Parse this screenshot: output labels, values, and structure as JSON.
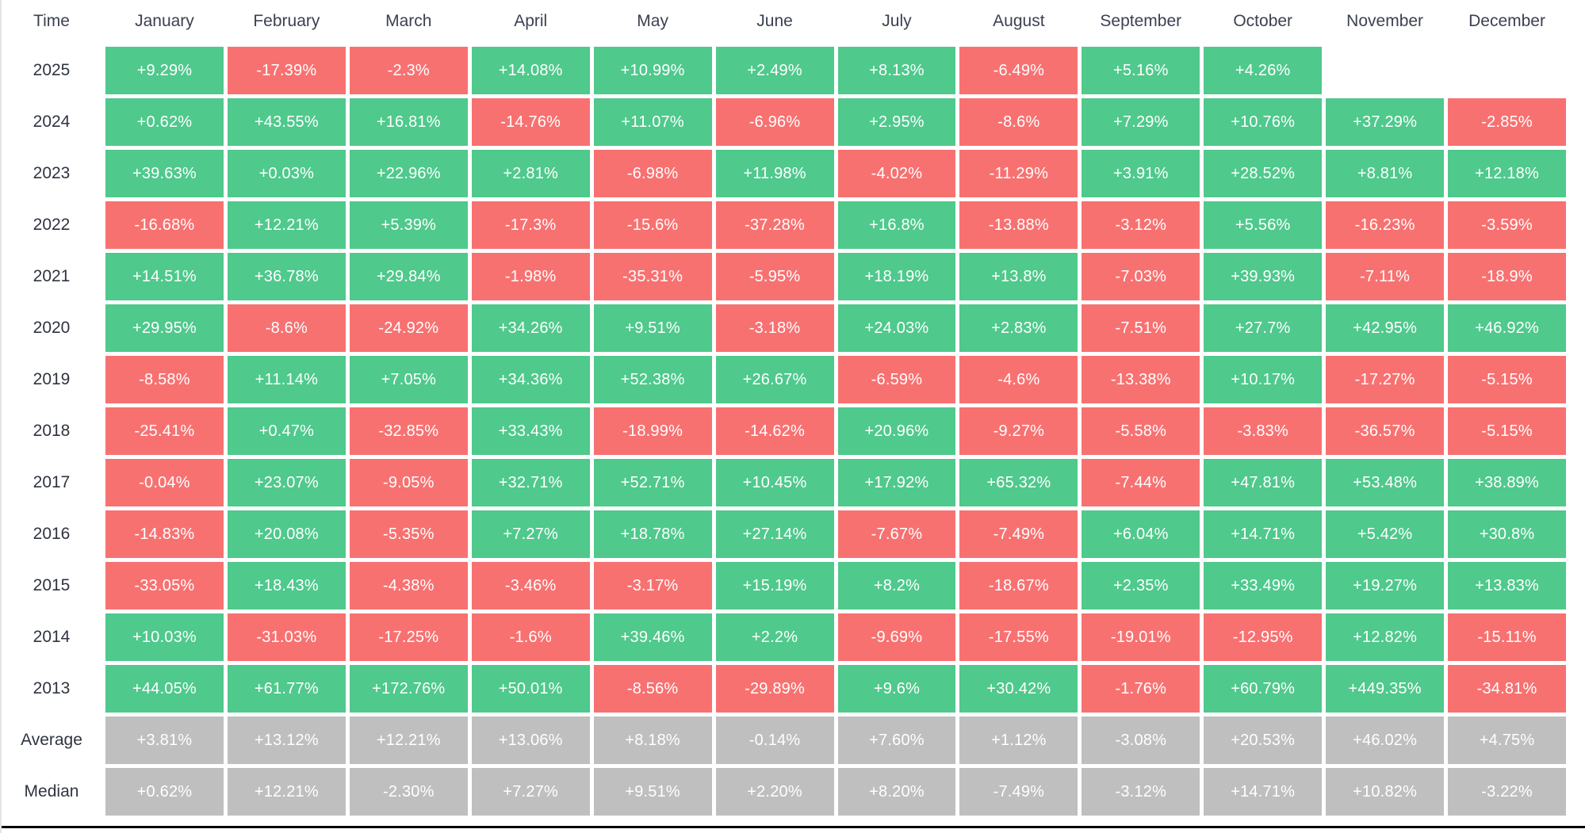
{
  "colors": {
    "green": "#4fc98c",
    "red": "#f87171",
    "gray": "#bfbfbf",
    "header_text": "#3b4150",
    "label_text": "#2e3440",
    "cell_text": "#ffffff",
    "bottom_rule": "#050505"
  },
  "table": {
    "corner_label": "Time",
    "months": [
      "January",
      "February",
      "March",
      "April",
      "May",
      "June",
      "July",
      "August",
      "September",
      "October",
      "November",
      "December"
    ],
    "rows": [
      {
        "label": "2025",
        "type": "year",
        "cells": [
          {
            "v": "+9.29%",
            "c": "green"
          },
          {
            "v": "-17.39%",
            "c": "red"
          },
          {
            "v": "-2.3%",
            "c": "red"
          },
          {
            "v": "+14.08%",
            "c": "green"
          },
          {
            "v": "+10.99%",
            "c": "green"
          },
          {
            "v": "+2.49%",
            "c": "green"
          },
          {
            "v": "+8.13%",
            "c": "green"
          },
          {
            "v": "-6.49%",
            "c": "red"
          },
          {
            "v": "+5.16%",
            "c": "green"
          },
          {
            "v": "+4.26%",
            "c": "green"
          },
          null,
          null
        ]
      },
      {
        "label": "2024",
        "type": "year",
        "cells": [
          {
            "v": "+0.62%",
            "c": "green"
          },
          {
            "v": "+43.55%",
            "c": "green"
          },
          {
            "v": "+16.81%",
            "c": "green"
          },
          {
            "v": "-14.76%",
            "c": "red"
          },
          {
            "v": "+11.07%",
            "c": "green"
          },
          {
            "v": "-6.96%",
            "c": "red"
          },
          {
            "v": "+2.95%",
            "c": "green"
          },
          {
            "v": "-8.6%",
            "c": "red"
          },
          {
            "v": "+7.29%",
            "c": "green"
          },
          {
            "v": "+10.76%",
            "c": "green"
          },
          {
            "v": "+37.29%",
            "c": "green"
          },
          {
            "v": "-2.85%",
            "c": "red"
          }
        ]
      },
      {
        "label": "2023",
        "type": "year",
        "cells": [
          {
            "v": "+39.63%",
            "c": "green"
          },
          {
            "v": "+0.03%",
            "c": "green"
          },
          {
            "v": "+22.96%",
            "c": "green"
          },
          {
            "v": "+2.81%",
            "c": "green"
          },
          {
            "v": "-6.98%",
            "c": "red"
          },
          {
            "v": "+11.98%",
            "c": "green"
          },
          {
            "v": "-4.02%",
            "c": "red"
          },
          {
            "v": "-11.29%",
            "c": "red"
          },
          {
            "v": "+3.91%",
            "c": "green"
          },
          {
            "v": "+28.52%",
            "c": "green"
          },
          {
            "v": "+8.81%",
            "c": "green"
          },
          {
            "v": "+12.18%",
            "c": "green"
          }
        ]
      },
      {
        "label": "2022",
        "type": "year",
        "cells": [
          {
            "v": "-16.68%",
            "c": "red"
          },
          {
            "v": "+12.21%",
            "c": "green"
          },
          {
            "v": "+5.39%",
            "c": "green"
          },
          {
            "v": "-17.3%",
            "c": "red"
          },
          {
            "v": "-15.6%",
            "c": "red"
          },
          {
            "v": "-37.28%",
            "c": "red"
          },
          {
            "v": "+16.8%",
            "c": "green"
          },
          {
            "v": "-13.88%",
            "c": "red"
          },
          {
            "v": "-3.12%",
            "c": "red"
          },
          {
            "v": "+5.56%",
            "c": "green"
          },
          {
            "v": "-16.23%",
            "c": "red"
          },
          {
            "v": "-3.59%",
            "c": "red"
          }
        ]
      },
      {
        "label": "2021",
        "type": "year",
        "cells": [
          {
            "v": "+14.51%",
            "c": "green"
          },
          {
            "v": "+36.78%",
            "c": "green"
          },
          {
            "v": "+29.84%",
            "c": "green"
          },
          {
            "v": "-1.98%",
            "c": "red"
          },
          {
            "v": "-35.31%",
            "c": "red"
          },
          {
            "v": "-5.95%",
            "c": "red"
          },
          {
            "v": "+18.19%",
            "c": "green"
          },
          {
            "v": "+13.8%",
            "c": "green"
          },
          {
            "v": "-7.03%",
            "c": "red"
          },
          {
            "v": "+39.93%",
            "c": "green"
          },
          {
            "v": "-7.11%",
            "c": "red"
          },
          {
            "v": "-18.9%",
            "c": "red"
          }
        ]
      },
      {
        "label": "2020",
        "type": "year",
        "cells": [
          {
            "v": "+29.95%",
            "c": "green"
          },
          {
            "v": "-8.6%",
            "c": "red"
          },
          {
            "v": "-24.92%",
            "c": "red"
          },
          {
            "v": "+34.26%",
            "c": "green"
          },
          {
            "v": "+9.51%",
            "c": "green"
          },
          {
            "v": "-3.18%",
            "c": "red"
          },
          {
            "v": "+24.03%",
            "c": "green"
          },
          {
            "v": "+2.83%",
            "c": "green"
          },
          {
            "v": "-7.51%",
            "c": "red"
          },
          {
            "v": "+27.7%",
            "c": "green"
          },
          {
            "v": "+42.95%",
            "c": "green"
          },
          {
            "v": "+46.92%",
            "c": "green"
          }
        ]
      },
      {
        "label": "2019",
        "type": "year",
        "cells": [
          {
            "v": "-8.58%",
            "c": "red"
          },
          {
            "v": "+11.14%",
            "c": "green"
          },
          {
            "v": "+7.05%",
            "c": "green"
          },
          {
            "v": "+34.36%",
            "c": "green"
          },
          {
            "v": "+52.38%",
            "c": "green"
          },
          {
            "v": "+26.67%",
            "c": "green"
          },
          {
            "v": "-6.59%",
            "c": "red"
          },
          {
            "v": "-4.6%",
            "c": "red"
          },
          {
            "v": "-13.38%",
            "c": "red"
          },
          {
            "v": "+10.17%",
            "c": "green"
          },
          {
            "v": "-17.27%",
            "c": "red"
          },
          {
            "v": "-5.15%",
            "c": "red"
          }
        ]
      },
      {
        "label": "2018",
        "type": "year",
        "cells": [
          {
            "v": "-25.41%",
            "c": "red"
          },
          {
            "v": "+0.47%",
            "c": "green"
          },
          {
            "v": "-32.85%",
            "c": "red"
          },
          {
            "v": "+33.43%",
            "c": "green"
          },
          {
            "v": "-18.99%",
            "c": "red"
          },
          {
            "v": "-14.62%",
            "c": "red"
          },
          {
            "v": "+20.96%",
            "c": "green"
          },
          {
            "v": "-9.27%",
            "c": "red"
          },
          {
            "v": "-5.58%",
            "c": "red"
          },
          {
            "v": "-3.83%",
            "c": "red"
          },
          {
            "v": "-36.57%",
            "c": "red"
          },
          {
            "v": "-5.15%",
            "c": "red"
          }
        ]
      },
      {
        "label": "2017",
        "type": "year",
        "cells": [
          {
            "v": "-0.04%",
            "c": "red"
          },
          {
            "v": "+23.07%",
            "c": "green"
          },
          {
            "v": "-9.05%",
            "c": "red"
          },
          {
            "v": "+32.71%",
            "c": "green"
          },
          {
            "v": "+52.71%",
            "c": "green"
          },
          {
            "v": "+10.45%",
            "c": "green"
          },
          {
            "v": "+17.92%",
            "c": "green"
          },
          {
            "v": "+65.32%",
            "c": "green"
          },
          {
            "v": "-7.44%",
            "c": "red"
          },
          {
            "v": "+47.81%",
            "c": "green"
          },
          {
            "v": "+53.48%",
            "c": "green"
          },
          {
            "v": "+38.89%",
            "c": "green"
          }
        ]
      },
      {
        "label": "2016",
        "type": "year",
        "cells": [
          {
            "v": "-14.83%",
            "c": "red"
          },
          {
            "v": "+20.08%",
            "c": "green"
          },
          {
            "v": "-5.35%",
            "c": "red"
          },
          {
            "v": "+7.27%",
            "c": "green"
          },
          {
            "v": "+18.78%",
            "c": "green"
          },
          {
            "v": "+27.14%",
            "c": "green"
          },
          {
            "v": "-7.67%",
            "c": "red"
          },
          {
            "v": "-7.49%",
            "c": "red"
          },
          {
            "v": "+6.04%",
            "c": "green"
          },
          {
            "v": "+14.71%",
            "c": "green"
          },
          {
            "v": "+5.42%",
            "c": "green"
          },
          {
            "v": "+30.8%",
            "c": "green"
          }
        ]
      },
      {
        "label": "2015",
        "type": "year",
        "cells": [
          {
            "v": "-33.05%",
            "c": "red"
          },
          {
            "v": "+18.43%",
            "c": "green"
          },
          {
            "v": "-4.38%",
            "c": "red"
          },
          {
            "v": "-3.46%",
            "c": "red"
          },
          {
            "v": "-3.17%",
            "c": "red"
          },
          {
            "v": "+15.19%",
            "c": "green"
          },
          {
            "v": "+8.2%",
            "c": "green"
          },
          {
            "v": "-18.67%",
            "c": "red"
          },
          {
            "v": "+2.35%",
            "c": "green"
          },
          {
            "v": "+33.49%",
            "c": "green"
          },
          {
            "v": "+19.27%",
            "c": "green"
          },
          {
            "v": "+13.83%",
            "c": "green"
          }
        ]
      },
      {
        "label": "2014",
        "type": "year",
        "cells": [
          {
            "v": "+10.03%",
            "c": "green"
          },
          {
            "v": "-31.03%",
            "c": "red"
          },
          {
            "v": "-17.25%",
            "c": "red"
          },
          {
            "v": "-1.6%",
            "c": "red"
          },
          {
            "v": "+39.46%",
            "c": "green"
          },
          {
            "v": "+2.2%",
            "c": "green"
          },
          {
            "v": "-9.69%",
            "c": "red"
          },
          {
            "v": "-17.55%",
            "c": "red"
          },
          {
            "v": "-19.01%",
            "c": "red"
          },
          {
            "v": "-12.95%",
            "c": "red"
          },
          {
            "v": "+12.82%",
            "c": "green"
          },
          {
            "v": "-15.11%",
            "c": "red"
          }
        ]
      },
      {
        "label": "2013",
        "type": "year",
        "cells": [
          {
            "v": "+44.05%",
            "c": "green"
          },
          {
            "v": "+61.77%",
            "c": "green"
          },
          {
            "v": "+172.76%",
            "c": "green"
          },
          {
            "v": "+50.01%",
            "c": "green"
          },
          {
            "v": "-8.56%",
            "c": "red"
          },
          {
            "v": "-29.89%",
            "c": "red"
          },
          {
            "v": "+9.6%",
            "c": "green"
          },
          {
            "v": "+30.42%",
            "c": "green"
          },
          {
            "v": "-1.76%",
            "c": "red"
          },
          {
            "v": "+60.79%",
            "c": "green"
          },
          {
            "v": "+449.35%",
            "c": "green"
          },
          {
            "v": "-34.81%",
            "c": "red"
          }
        ]
      },
      {
        "label": "Average",
        "type": "summary",
        "cells": [
          {
            "v": "+3.81%",
            "c": "gray"
          },
          {
            "v": "+13.12%",
            "c": "gray"
          },
          {
            "v": "+12.21%",
            "c": "gray"
          },
          {
            "v": "+13.06%",
            "c": "gray"
          },
          {
            "v": "+8.18%",
            "c": "gray"
          },
          {
            "v": "-0.14%",
            "c": "gray"
          },
          {
            "v": "+7.60%",
            "c": "gray"
          },
          {
            "v": "+1.12%",
            "c": "gray"
          },
          {
            "v": "-3.08%",
            "c": "gray"
          },
          {
            "v": "+20.53%",
            "c": "gray"
          },
          {
            "v": "+46.02%",
            "c": "gray"
          },
          {
            "v": "+4.75%",
            "c": "gray"
          }
        ]
      },
      {
        "label": "Median",
        "type": "summary",
        "cells": [
          {
            "v": "+0.62%",
            "c": "gray"
          },
          {
            "v": "+12.21%",
            "c": "gray"
          },
          {
            "v": "-2.30%",
            "c": "gray"
          },
          {
            "v": "+7.27%",
            "c": "gray"
          },
          {
            "v": "+9.51%",
            "c": "gray"
          },
          {
            "v": "+2.20%",
            "c": "gray"
          },
          {
            "v": "+8.20%",
            "c": "gray"
          },
          {
            "v": "-7.49%",
            "c": "gray"
          },
          {
            "v": "-3.12%",
            "c": "gray"
          },
          {
            "v": "+14.71%",
            "c": "gray"
          },
          {
            "v": "+10.82%",
            "c": "gray"
          },
          {
            "v": "-3.22%",
            "c": "gray"
          }
        ]
      }
    ]
  },
  "chart_data": {
    "type": "heatmap",
    "x_labels": [
      "January",
      "February",
      "March",
      "April",
      "May",
      "June",
      "July",
      "August",
      "September",
      "October",
      "November",
      "December"
    ],
    "y_labels": [
      "2025",
      "2024",
      "2023",
      "2022",
      "2021",
      "2020",
      "2019",
      "2018",
      "2017",
      "2016",
      "2015",
      "2014",
      "2013",
      "Average",
      "Median"
    ],
    "values_percent": [
      [
        9.29,
        -17.39,
        -2.3,
        14.08,
        10.99,
        2.49,
        8.13,
        -6.49,
        5.16,
        4.26,
        null,
        null
      ],
      [
        0.62,
        43.55,
        16.81,
        -14.76,
        11.07,
        -6.96,
        2.95,
        -8.6,
        7.29,
        10.76,
        37.29,
        -2.85
      ],
      [
        39.63,
        0.03,
        22.96,
        2.81,
        -6.98,
        11.98,
        -4.02,
        -11.29,
        3.91,
        28.52,
        8.81,
        12.18
      ],
      [
        -16.68,
        12.21,
        5.39,
        -17.3,
        -15.6,
        -37.28,
        16.8,
        -13.88,
        -3.12,
        5.56,
        -16.23,
        -3.59
      ],
      [
        14.51,
        36.78,
        29.84,
        -1.98,
        -35.31,
        -5.95,
        18.19,
        13.8,
        -7.03,
        39.93,
        -7.11,
        -18.9
      ],
      [
        29.95,
        -8.6,
        -24.92,
        34.26,
        9.51,
        -3.18,
        24.03,
        2.83,
        -7.51,
        27.7,
        42.95,
        46.92
      ],
      [
        -8.58,
        11.14,
        7.05,
        34.36,
        52.38,
        26.67,
        -6.59,
        -4.6,
        -13.38,
        10.17,
        -17.27,
        -5.15
      ],
      [
        -25.41,
        0.47,
        -32.85,
        33.43,
        -18.99,
        -14.62,
        20.96,
        -9.27,
        -5.58,
        -3.83,
        -36.57,
        -5.15
      ],
      [
        -0.04,
        23.07,
        -9.05,
        32.71,
        52.71,
        10.45,
        17.92,
        65.32,
        -7.44,
        47.81,
        53.48,
        38.89
      ],
      [
        -14.83,
        20.08,
        -5.35,
        7.27,
        18.78,
        27.14,
        -7.67,
        -7.49,
        6.04,
        14.71,
        5.42,
        30.8
      ],
      [
        -33.05,
        18.43,
        -4.38,
        -3.46,
        -3.17,
        15.19,
        8.2,
        -18.67,
        2.35,
        33.49,
        19.27,
        13.83
      ],
      [
        10.03,
        -31.03,
        -17.25,
        -1.6,
        39.46,
        2.2,
        -9.69,
        -17.55,
        -19.01,
        -12.95,
        12.82,
        -15.11
      ],
      [
        44.05,
        61.77,
        172.76,
        50.01,
        -8.56,
        -29.89,
        9.6,
        30.42,
        -1.76,
        60.79,
        449.35,
        -34.81
      ],
      [
        3.81,
        13.12,
        12.21,
        13.06,
        8.18,
        -0.14,
        7.6,
        1.12,
        -3.08,
        20.53,
        46.02,
        4.75
      ],
      [
        0.62,
        12.21,
        -2.3,
        7.27,
        9.51,
        2.2,
        8.2,
        -7.49,
        -3.12,
        14.71,
        10.82,
        -3.22
      ]
    ],
    "layout": {
      "legend": false,
      "grid": false,
      "cell_color_rule": "green = positive, red = negative, gray = summary rows (Average/Median)"
    }
  }
}
